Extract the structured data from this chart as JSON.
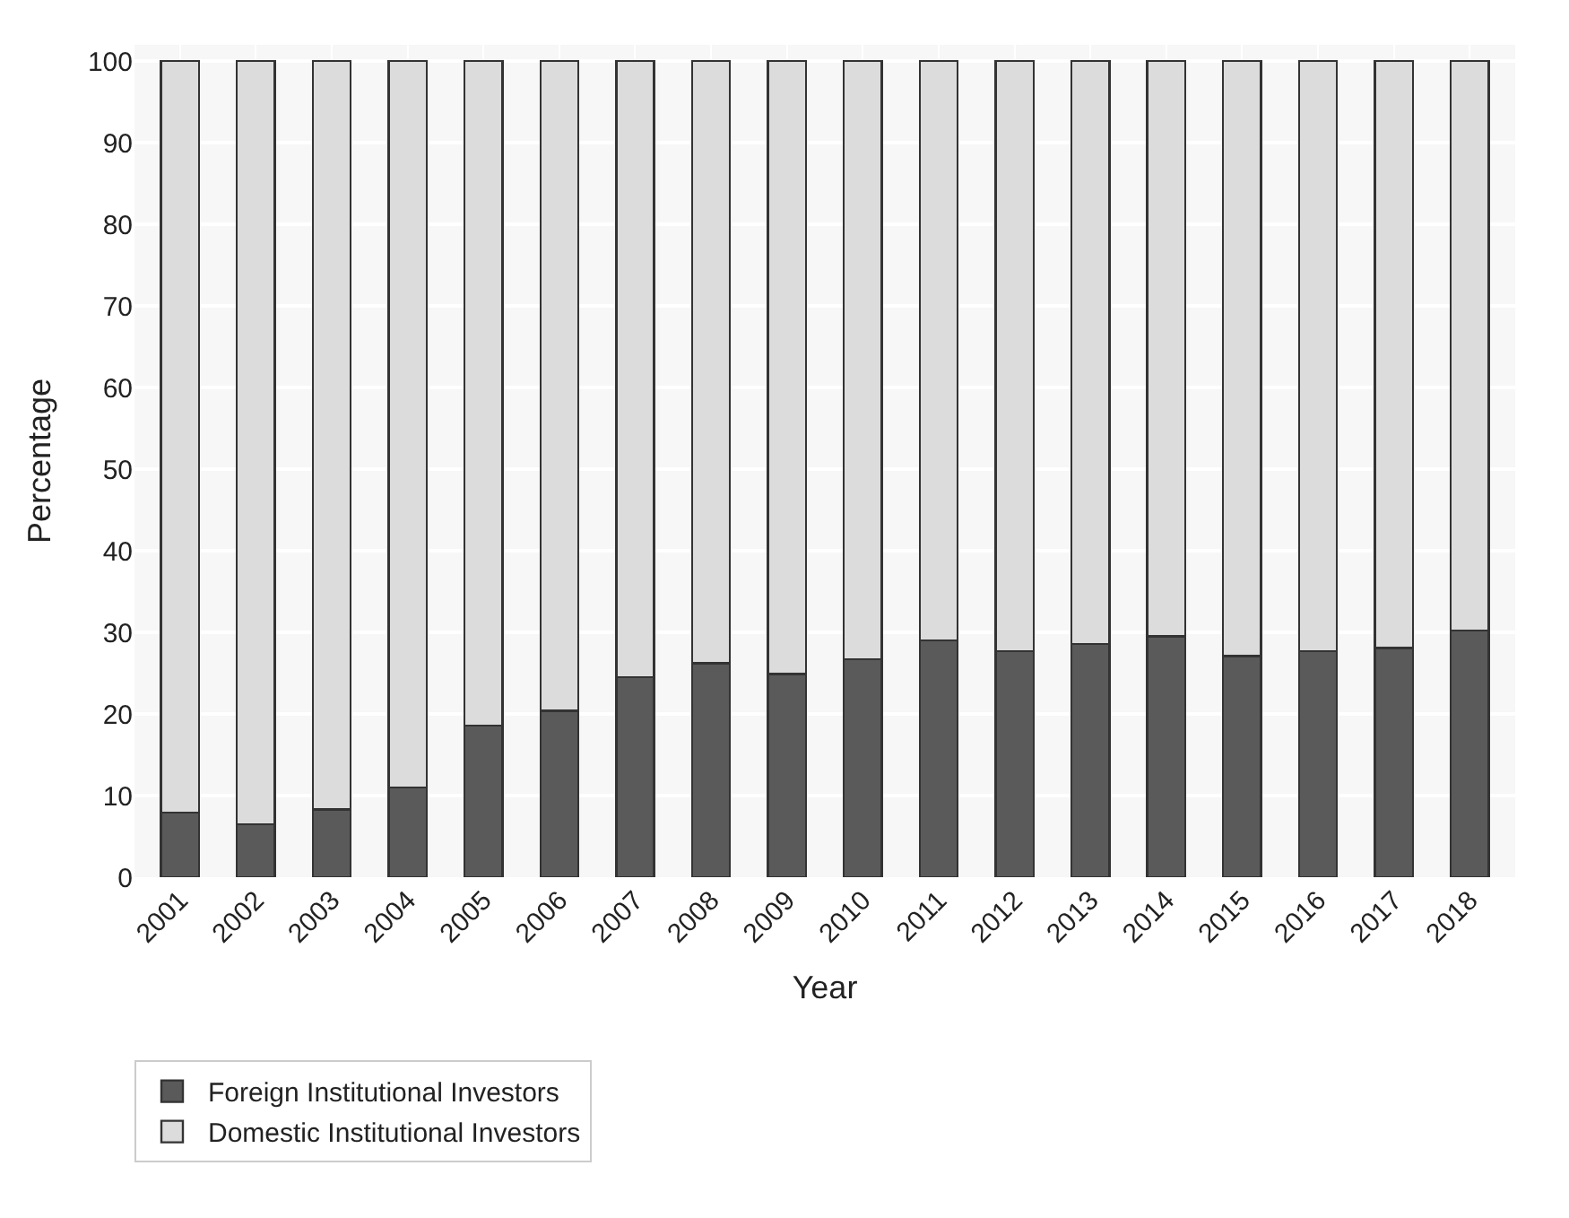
{
  "chart_data": {
    "type": "bar",
    "stacked": true,
    "xlabel": "Year",
    "ylabel": "Percentage",
    "categories": [
      "2001",
      "2002",
      "2003",
      "2004",
      "2005",
      "2006",
      "2007",
      "2008",
      "2009",
      "2010",
      "2011",
      "2012",
      "2013",
      "2014",
      "2015",
      "2016",
      "2017",
      "2018"
    ],
    "series": [
      {
        "name": "Foreign Institutional Investors",
        "color": "#5a5a5a",
        "values": [
          7.9,
          6.5,
          8.3,
          11.0,
          18.6,
          20.4,
          24.5,
          26.2,
          24.9,
          26.7,
          29.0,
          27.7,
          28.6,
          29.5,
          27.1,
          27.7,
          28.1,
          30.2
        ]
      },
      {
        "name": "Domestic Institutional Investors",
        "color": "#dcdcdc",
        "values": [
          92.1,
          93.5,
          91.7,
          89.0,
          81.4,
          79.6,
          75.5,
          73.8,
          75.1,
          73.3,
          71.0,
          72.3,
          71.4,
          70.5,
          72.9,
          72.3,
          71.9,
          69.8
        ]
      }
    ],
    "ylim": [
      0,
      102
    ],
    "yticks": [
      0,
      10,
      20,
      30,
      40,
      50,
      60,
      70,
      80,
      90,
      100
    ],
    "grid": true,
    "legend": "bottom left"
  }
}
